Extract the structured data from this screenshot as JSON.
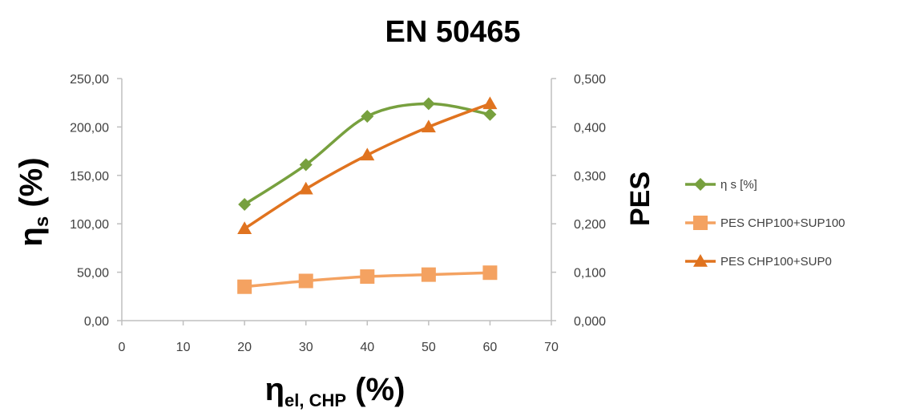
{
  "chart_data": {
    "type": "line",
    "title": "EN 50465",
    "x_label": {
      "base": "η",
      "sub": "el, CHP",
      "suffix": " (%)"
    },
    "y_left_label": {
      "base": "η",
      "sub": "s",
      "suffix": " (%)"
    },
    "y_right_label": "PES",
    "x_range": [
      0,
      70
    ],
    "x_ticks": [
      "0",
      "10",
      "20",
      "30",
      "40",
      "50",
      "60",
      "70"
    ],
    "y_left_range": [
      0,
      250
    ],
    "y_left_ticks": [
      "0,00",
      "50,00",
      "100,00",
      "150,00",
      "200,00",
      "250,00"
    ],
    "y_right_range": [
      0,
      0.5
    ],
    "y_right_ticks": [
      "0,000",
      "0,100",
      "0,200",
      "0,300",
      "0,400",
      "0,500"
    ],
    "grid": false,
    "legend_position": "right",
    "x": [
      20,
      30,
      40,
      50,
      60
    ],
    "series": [
      {
        "name": "η s [%]",
        "axis": "left",
        "marker": "diamond",
        "color": "#77a03e",
        "values": [
          120,
          161,
          211,
          224,
          213
        ]
      },
      {
        "name": "PES CHP100+SUP100",
        "axis": "right",
        "marker": "square",
        "color": "#f4a261",
        "values": [
          0.07,
          0.082,
          0.091,
          0.095,
          0.099
        ]
      },
      {
        "name": "PES CHP100+SUP0",
        "axis": "right",
        "marker": "triangle",
        "color": "#e0731f",
        "values": [
          0.19,
          0.272,
          0.342,
          0.4,
          0.448
        ]
      }
    ]
  }
}
